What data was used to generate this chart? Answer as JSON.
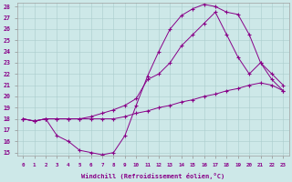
{
  "xlabel": "Windchill (Refroidissement éolien,°C)",
  "bg_color": "#cde8e8",
  "line_color": "#880088",
  "xmin": 0,
  "xmax": 23,
  "ymin": 15,
  "ymax": 28,
  "line1_x": [
    0,
    1,
    2,
    3,
    4,
    5,
    6,
    7,
    8,
    9,
    10,
    11,
    12,
    13,
    14,
    15,
    16,
    17,
    18,
    19,
    20,
    21,
    22,
    23
  ],
  "line1_y": [
    18.0,
    17.8,
    18.0,
    18.0,
    18.0,
    18.0,
    18.0,
    18.0,
    18.0,
    18.2,
    18.5,
    18.7,
    19.0,
    19.2,
    19.5,
    19.7,
    20.0,
    20.2,
    20.5,
    20.7,
    21.0,
    21.2,
    21.0,
    20.5
  ],
  "line2_x": [
    0,
    1,
    2,
    3,
    4,
    5,
    6,
    7,
    8,
    9,
    10,
    11,
    12,
    13,
    14,
    15,
    16,
    17,
    18,
    19,
    20,
    21,
    22,
    23
  ],
  "line2_y": [
    18.0,
    17.8,
    18.0,
    16.5,
    16.0,
    15.2,
    15.0,
    14.8,
    15.0,
    16.5,
    19.2,
    21.8,
    24.0,
    26.0,
    27.2,
    27.8,
    28.2,
    28.0,
    27.5,
    27.3,
    25.5,
    23.0,
    21.5,
    20.5
  ],
  "line3_x": [
    0,
    1,
    2,
    3,
    4,
    5,
    6,
    7,
    8,
    9,
    10,
    11,
    12,
    13,
    14,
    15,
    16,
    17,
    18,
    19,
    20,
    21,
    22,
    23
  ],
  "line3_y": [
    18.0,
    17.8,
    18.0,
    18.0,
    18.0,
    18.0,
    18.2,
    18.5,
    18.8,
    19.2,
    19.8,
    21.5,
    22.0,
    23.0,
    24.5,
    25.5,
    26.5,
    27.5,
    25.5,
    23.5,
    22.0,
    23.0,
    22.0,
    21.0
  ]
}
